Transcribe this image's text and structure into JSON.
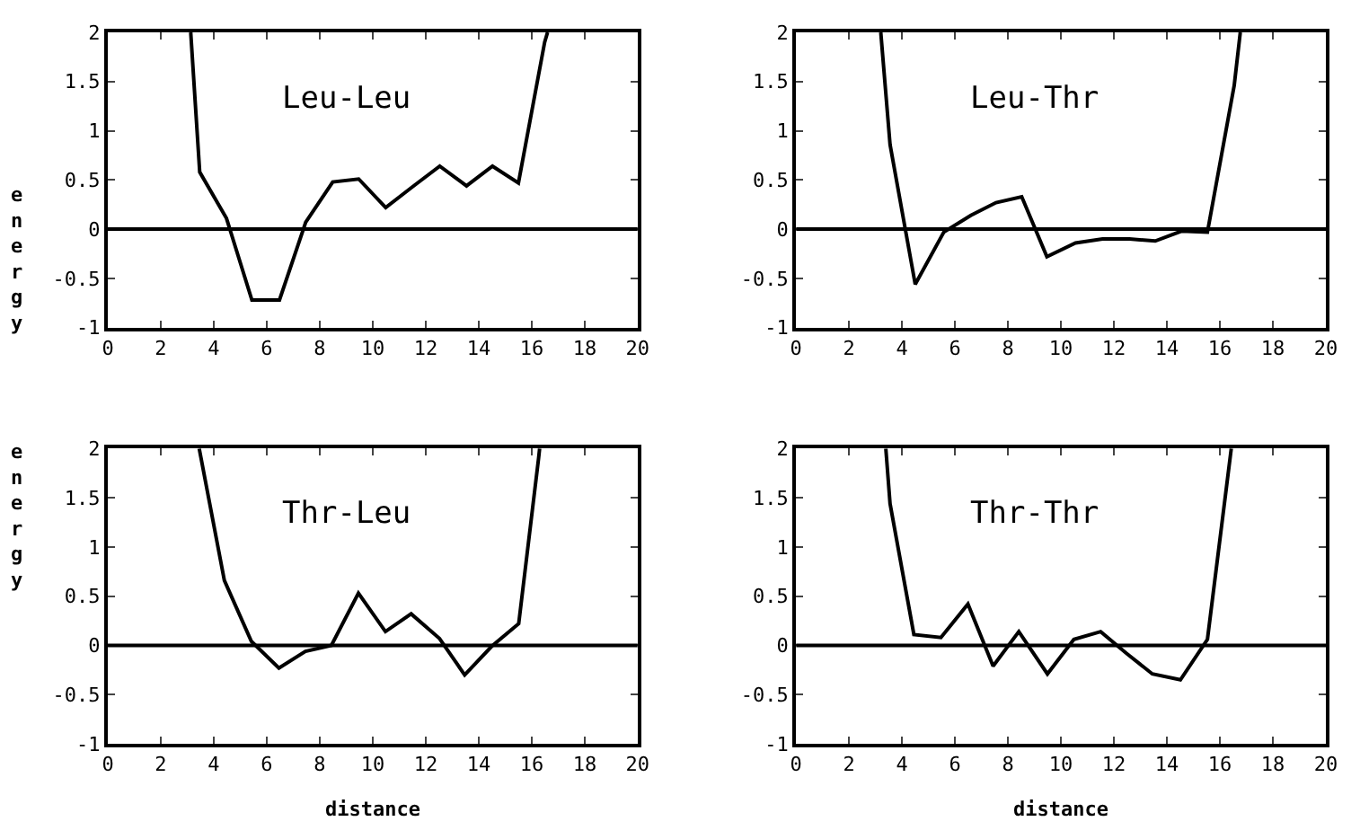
{
  "chart_data": [
    {
      "type": "line",
      "annotations": [
        "Leu-Leu"
      ],
      "ylabel": "energy",
      "x": [
        3.13,
        3.47,
        4.48,
        5.44,
        6.48,
        7.47,
        8.49,
        9.47,
        10.49,
        11.5,
        12.53,
        13.54,
        14.52,
        15.5,
        16.49,
        16.6
      ],
      "series": [
        {
          "color": "#000000",
          "values": [
            2,
            0.58,
            0.11,
            -0.72,
            -0.72,
            0.07,
            0.48,
            0.51,
            0.22,
            0.43,
            0.64,
            0.44,
            0.64,
            0.47,
            1.9,
            2
          ]
        }
      ],
      "xlim": [
        0,
        20
      ],
      "xticks": [
        0,
        2,
        4,
        6,
        8,
        10,
        12,
        14,
        16,
        18,
        20
      ],
      "ylim": [
        -1,
        2
      ],
      "yticks": [
        -1,
        -0.5,
        0,
        0.5,
        1,
        1.5,
        2
      ],
      "ref_lines": [
        {
          "axis": "y",
          "value": 0
        }
      ]
    },
    {
      "type": "line",
      "annotations": [
        "Leu-Thr"
      ],
      "x": [
        3.2,
        3.55,
        4.5,
        5.58,
        6.6,
        7.55,
        8.52,
        9.47,
        10.55,
        11.57,
        12.59,
        13.56,
        14.55,
        15.53,
        16.54,
        16.77
      ],
      "series": [
        {
          "color": "#000000",
          "values": [
            2,
            0.86,
            -0.56,
            -0.03,
            0.14,
            0.27,
            0.33,
            -0.28,
            -0.14,
            -0.1,
            -0.1,
            -0.12,
            -0.02,
            -0.03,
            1.46,
            2
          ]
        }
      ],
      "xlim": [
        0,
        20
      ],
      "xticks": [
        0,
        2,
        4,
        6,
        8,
        10,
        12,
        14,
        16,
        18,
        20
      ],
      "ylim": [
        -1,
        2
      ],
      "yticks": [
        -1,
        -0.5,
        0,
        0.5,
        1,
        1.5,
        2
      ],
      "ref_lines": [
        {
          "axis": "y",
          "value": 0
        }
      ]
    },
    {
      "type": "line",
      "annotations": [
        "Thr-Leu"
      ],
      "ylabel": "energy",
      "xlabel": "distance",
      "x": [
        3.45,
        4.4,
        5.42,
        6.46,
        7.46,
        8.44,
        9.46,
        10.48,
        11.45,
        12.52,
        13.47,
        14.49,
        15.51,
        16.26,
        16.3
      ],
      "series": [
        {
          "color": "#000000",
          "values": [
            2,
            0.66,
            0.04,
            -0.23,
            -0.06,
            0,
            0.53,
            0.14,
            0.32,
            0.07,
            -0.3,
            -0.01,
            0.22,
            1.9,
            2
          ]
        }
      ],
      "xlim": [
        0,
        20
      ],
      "xticks": [
        0,
        2,
        4,
        6,
        8,
        10,
        12,
        14,
        16,
        18,
        20
      ],
      "ylim": [
        -1,
        2
      ],
      "yticks": [
        -1,
        -0.5,
        0,
        0.5,
        1,
        1.5,
        2
      ],
      "ref_lines": [
        {
          "axis": "y",
          "value": 0
        }
      ]
    },
    {
      "type": "line",
      "annotations": [
        "Thr-Thr"
      ],
      "xlabel": "distance",
      "x": [
        3.39,
        3.55,
        4.45,
        5.47,
        6.49,
        7.44,
        8.41,
        9.49,
        10.49,
        11.5,
        12.47,
        13.45,
        14.51,
        15.53,
        16.43
      ],
      "series": [
        {
          "color": "#000000",
          "values": [
            2,
            1.44,
            0.11,
            0.08,
            0.42,
            -0.21,
            0.14,
            -0.29,
            0.06,
            0.14,
            -0.08,
            -0.29,
            -0.35,
            0.06,
            2
          ]
        }
      ],
      "xlim": [
        0,
        20
      ],
      "xticks": [
        0,
        2,
        4,
        6,
        8,
        10,
        12,
        14,
        16,
        18,
        20
      ],
      "ylim": [
        -1,
        2
      ],
      "yticks": [
        -1,
        -0.5,
        0,
        0.5,
        1,
        1.5,
        2
      ],
      "ref_lines": [
        {
          "axis": "y",
          "value": 0
        }
      ]
    }
  ]
}
